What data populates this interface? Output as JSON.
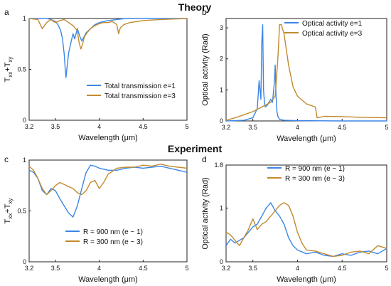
{
  "section_titles": {
    "theory": "Theory",
    "experiment": "Experiment"
  },
  "colors": {
    "blue": "#3a86e8",
    "orange": "#c18a2e",
    "axis": "#222222"
  },
  "chart_data": [
    {
      "panel_label": "a",
      "type": "line",
      "xlabel": "Wavelength (μm)",
      "ylabel": "T_xx+T_xy",
      "xlim": [
        3.2,
        5.0
      ],
      "ylim": [
        0,
        1
      ],
      "xticks": [
        "3.2",
        "3.5",
        "4",
        "4.5",
        "5"
      ],
      "yticks": [
        "0",
        "0.5",
        "1"
      ],
      "legend": "bottom-right",
      "series": [
        {
          "name": "Total transmission e=1",
          "color": "#3a86e8",
          "x": [
            3.2,
            3.3,
            3.4,
            3.45,
            3.5,
            3.52,
            3.54,
            3.56,
            3.58,
            3.6,
            3.61,
            3.62,
            3.63,
            3.65,
            3.67,
            3.7,
            3.72,
            3.75,
            3.78,
            3.8,
            3.85,
            3.9,
            3.95,
            4.0,
            4.05,
            4.1,
            4.2,
            4.3,
            4.4,
            4.6,
            5.0
          ],
          "y": [
            1.0,
            1.0,
            1.0,
            0.99,
            0.97,
            0.95,
            0.92,
            0.88,
            0.8,
            0.65,
            0.52,
            0.42,
            0.5,
            0.66,
            0.74,
            0.85,
            0.8,
            0.9,
            0.82,
            0.78,
            0.86,
            0.9,
            0.94,
            0.96,
            0.97,
            0.98,
            0.99,
            1.0,
            1.0,
            1.0,
            1.0
          ]
        },
        {
          "name": "Total transmission e=3",
          "color": "#c18a2e",
          "x": [
            3.2,
            3.3,
            3.35,
            3.4,
            3.45,
            3.48,
            3.5,
            3.55,
            3.6,
            3.65,
            3.7,
            3.75,
            3.77,
            3.79,
            3.81,
            3.83,
            3.86,
            3.9,
            3.95,
            4.0,
            4.05,
            4.1,
            4.15,
            4.2,
            4.22,
            4.24,
            4.28,
            4.35,
            4.5,
            4.7,
            5.0
          ],
          "y": [
            1.0,
            0.99,
            0.9,
            0.96,
            0.99,
            0.97,
            0.96,
            0.98,
            0.99,
            0.96,
            0.93,
            0.88,
            0.76,
            0.7,
            0.75,
            0.82,
            0.86,
            0.9,
            0.93,
            0.95,
            0.96,
            0.96,
            0.97,
            0.94,
            0.85,
            0.91,
            0.94,
            0.96,
            0.98,
            0.99,
            1.0
          ]
        }
      ]
    },
    {
      "panel_label": "b",
      "type": "line",
      "xlabel": "Wavelength (μm)",
      "ylabel": "Optical activity (Rad)",
      "xlim": [
        3.2,
        5.0
      ],
      "ylim": [
        0,
        3.3
      ],
      "xticks": [
        "3.2",
        "3.5",
        "4",
        "4.5",
        "5"
      ],
      "yticks": [
        "0",
        "1",
        "2",
        "3"
      ],
      "legend": "top-right",
      "series": [
        {
          "name": "Optical activity  e=1",
          "color": "#3a86e8",
          "x": [
            3.2,
            3.4,
            3.5,
            3.55,
            3.57,
            3.59,
            3.6,
            3.61,
            3.62,
            3.63,
            3.64,
            3.66,
            3.7,
            3.72,
            3.74,
            3.75,
            3.76,
            3.77,
            3.78,
            3.8,
            3.85,
            4.0,
            4.5,
            5.0
          ],
          "y": [
            0.0,
            0.02,
            0.1,
            0.4,
            1.3,
            0.7,
            2.5,
            3.1,
            1.0,
            0.6,
            0.45,
            0.5,
            0.7,
            0.6,
            1.2,
            1.8,
            0.8,
            0.3,
            0.15,
            0.05,
            0.02,
            0.01,
            0.0,
            0.0
          ]
        },
        {
          "name": "Optical activity  e=3",
          "color": "#c18a2e",
          "x": [
            3.2,
            3.3,
            3.4,
            3.5,
            3.6,
            3.7,
            3.75,
            3.78,
            3.8,
            3.82,
            3.85,
            3.9,
            3.95,
            4.0,
            4.1,
            4.15,
            4.2,
            4.22,
            4.25,
            4.3,
            4.5,
            4.7,
            5.0
          ],
          "y": [
            0.02,
            0.1,
            0.2,
            0.3,
            0.45,
            0.6,
            0.8,
            2.0,
            3.1,
            3.1,
            2.8,
            1.8,
            1.1,
            0.8,
            0.55,
            0.5,
            0.45,
            0.1,
            0.12,
            0.15,
            0.14,
            0.12,
            0.1
          ]
        }
      ]
    },
    {
      "panel_label": "c",
      "type": "line",
      "xlabel": "Wavelength (μm)",
      "ylabel": "T_xx+T_xy",
      "xlim": [
        3.2,
        5.0
      ],
      "ylim": [
        0,
        1
      ],
      "xticks": [
        "3.2",
        "3.5",
        "4",
        "4.5",
        "5"
      ],
      "yticks": [
        "0",
        "0.5",
        "1"
      ],
      "legend": "bottom-right",
      "series": [
        {
          "name": "R = 900 nm (e ~ 1)",
          "color": "#3a86e8",
          "x": [
            3.2,
            3.25,
            3.3,
            3.35,
            3.4,
            3.45,
            3.5,
            3.55,
            3.6,
            3.65,
            3.7,
            3.75,
            3.8,
            3.85,
            3.9,
            3.95,
            4.0,
            4.1,
            4.2,
            4.3,
            4.4,
            4.5,
            4.6,
            4.7,
            4.8,
            4.9,
            5.0
          ],
          "y": [
            0.9,
            0.88,
            0.82,
            0.7,
            0.66,
            0.72,
            0.7,
            0.62,
            0.55,
            0.48,
            0.44,
            0.55,
            0.72,
            0.88,
            0.95,
            0.94,
            0.92,
            0.9,
            0.9,
            0.92,
            0.93,
            0.92,
            0.93,
            0.94,
            0.92,
            0.9,
            0.88
          ]
        },
        {
          "name": "R = 300 nm (e ~ 3)",
          "color": "#c18a2e",
          "x": [
            3.2,
            3.25,
            3.3,
            3.35,
            3.4,
            3.45,
            3.5,
            3.55,
            3.6,
            3.65,
            3.7,
            3.75,
            3.8,
            3.85,
            3.9,
            3.95,
            4.0,
            4.05,
            4.1,
            4.2,
            4.3,
            4.4,
            4.5,
            4.6,
            4.7,
            4.8,
            4.9,
            5.0
          ],
          "y": [
            0.94,
            0.9,
            0.82,
            0.72,
            0.66,
            0.7,
            0.75,
            0.78,
            0.76,
            0.74,
            0.72,
            0.68,
            0.66,
            0.7,
            0.78,
            0.8,
            0.72,
            0.78,
            0.86,
            0.92,
            0.93,
            0.93,
            0.95,
            0.94,
            0.96,
            0.94,
            0.93,
            0.92
          ]
        }
      ]
    },
    {
      "panel_label": "d",
      "type": "line",
      "xlabel": "Wavelength (μm)",
      "ylabel": "Optical activity (Rad)",
      "xlim": [
        3.2,
        5.0
      ],
      "ylim": [
        0,
        1.8
      ],
      "xticks": [
        "3.2",
        "3.5",
        "4",
        "4.5",
        "5"
      ],
      "yticks": [
        "0",
        "1",
        "1.8"
      ],
      "legend": "top-right",
      "series": [
        {
          "name": "R = 900 nm (e ~ 1)",
          "color": "#3a86e8",
          "x": [
            3.2,
            3.25,
            3.3,
            3.35,
            3.4,
            3.45,
            3.5,
            3.55,
            3.6,
            3.65,
            3.7,
            3.75,
            3.8,
            3.85,
            3.9,
            3.95,
            4.0,
            4.1,
            4.2,
            4.3,
            4.4,
            4.5,
            4.6,
            4.7,
            4.8,
            4.9,
            5.0
          ],
          "y": [
            0.3,
            0.42,
            0.35,
            0.4,
            0.45,
            0.55,
            0.65,
            0.7,
            0.85,
            1.0,
            1.1,
            0.95,
            0.85,
            0.7,
            0.45,
            0.3,
            0.22,
            0.15,
            0.18,
            0.12,
            0.1,
            0.15,
            0.12,
            0.18,
            0.2,
            0.15,
            0.25
          ]
        },
        {
          "name": "R = 300 nm (e ~ 3)",
          "color": "#c18a2e",
          "x": [
            3.2,
            3.25,
            3.3,
            3.35,
            3.4,
            3.45,
            3.5,
            3.55,
            3.6,
            3.65,
            3.7,
            3.75,
            3.8,
            3.85,
            3.9,
            3.95,
            4.0,
            4.05,
            4.1,
            4.2,
            4.3,
            4.4,
            4.5,
            4.6,
            4.7,
            4.8,
            4.9,
            5.0
          ],
          "y": [
            0.55,
            0.5,
            0.4,
            0.3,
            0.45,
            0.6,
            0.8,
            0.6,
            0.7,
            0.75,
            0.85,
            0.95,
            1.05,
            1.1,
            1.05,
            0.85,
            0.55,
            0.35,
            0.22,
            0.2,
            0.15,
            0.1,
            0.12,
            0.18,
            0.2,
            0.15,
            0.3,
            0.25
          ]
        }
      ]
    }
  ]
}
